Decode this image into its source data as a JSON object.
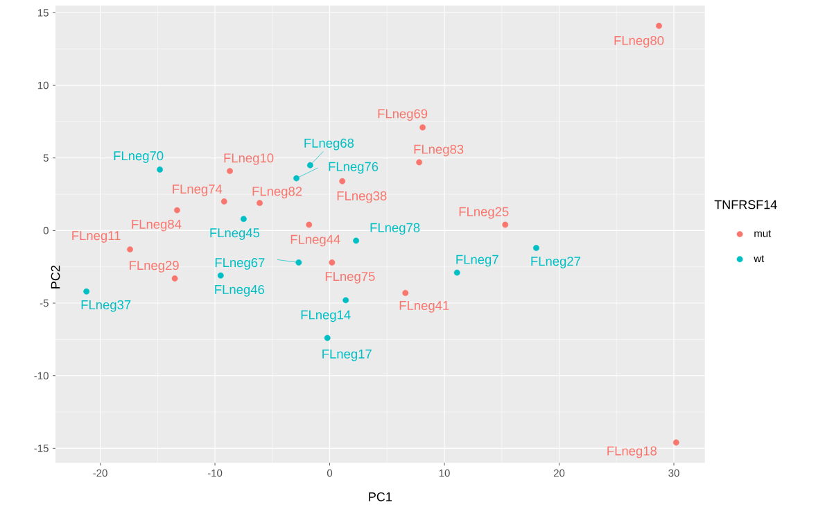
{
  "chart_data": {
    "type": "scatter",
    "xlabel": "PC1",
    "ylabel": "PC2",
    "legend_title": "TNFRSF14",
    "series": [
      {
        "name": "mut",
        "color": "#F8766D",
        "x": [
          28.7,
          30.2,
          8.1,
          7.8,
          -8.7,
          -9.2,
          -6.1,
          -13.3,
          1.1,
          -1.8,
          15.3,
          -17.4,
          -13.5,
          0.2,
          6.6
        ],
        "values": [
          14.1,
          -14.6,
          7.1,
          4.7,
          4.1,
          2.0,
          1.9,
          1.4,
          3.4,
          0.4,
          0.4,
          -1.3,
          -3.3,
          -2.2,
          -4.3
        ]
      },
      {
        "name": "wt",
        "color": "#00BFC4",
        "x": [
          -14.8,
          -1.7,
          -2.9,
          -7.5,
          2.3,
          18.0,
          11.1,
          -2.7,
          -9.5,
          -21.2,
          1.4,
          -0.2
        ],
        "values": [
          4.2,
          4.5,
          3.6,
          0.8,
          -0.7,
          -1.2,
          -2.9,
          -2.2,
          -3.1,
          -4.2,
          -4.8,
          -7.4
        ]
      }
    ],
    "annotations": [
      {
        "text": "FLneg80",
        "x": 28.7,
        "y": 14.1
      },
      {
        "text": "FLneg18",
        "x": 30.2,
        "y": -14.6
      },
      {
        "text": "FLneg69",
        "x": 8.1,
        "y": 7.1
      },
      {
        "text": "FLneg83",
        "x": 7.8,
        "y": 4.7
      },
      {
        "text": "FLneg10",
        "x": -8.7,
        "y": 4.1
      },
      {
        "text": "FLneg74",
        "x": -9.2,
        "y": 2.0
      },
      {
        "text": "FLneg82",
        "x": -6.1,
        "y": 1.9
      },
      {
        "text": "FLneg84",
        "x": -13.3,
        "y": 1.4
      },
      {
        "text": "FLneg38",
        "x": 1.1,
        "y": 3.4
      },
      {
        "text": "FLneg44",
        "x": -1.8,
        "y": 0.4
      },
      {
        "text": "FLneg25",
        "x": 15.3,
        "y": 0.4
      },
      {
        "text": "FLneg11",
        "x": -17.4,
        "y": -1.3
      },
      {
        "text": "FLneg29",
        "x": -13.5,
        "y": -3.3
      },
      {
        "text": "FLneg75",
        "x": 0.2,
        "y": -2.2
      },
      {
        "text": "FLneg41",
        "x": 6.6,
        "y": -4.3
      },
      {
        "text": "FLneg70",
        "x": -14.8,
        "y": 4.2
      },
      {
        "text": "FLneg68",
        "x": -1.7,
        "y": 4.5
      },
      {
        "text": "FLneg76",
        "x": -2.9,
        "y": 3.6
      },
      {
        "text": "FLneg45",
        "x": -7.5,
        "y": 0.8
      },
      {
        "text": "FLneg78",
        "x": 2.3,
        "y": -0.7
      },
      {
        "text": "FLneg27",
        "x": 18.0,
        "y": -1.2
      },
      {
        "text": "FLneg7",
        "x": 11.1,
        "y": -2.9
      },
      {
        "text": "FLneg67",
        "x": -2.7,
        "y": -2.2
      },
      {
        "text": "FLneg46",
        "x": -9.5,
        "y": -3.1
      },
      {
        "text": "FLneg37",
        "x": -21.2,
        "y": -4.2
      },
      {
        "text": "FLneg14",
        "x": 1.4,
        "y": -4.8
      },
      {
        "text": "FLneg17",
        "x": -0.2,
        "y": -7.4
      }
    ],
    "xlim": [
      -23.9,
      32.7
    ],
    "ylim": [
      -16,
      15.5
    ],
    "xticks": [
      -20,
      -10,
      0,
      10,
      20,
      30
    ],
    "yticks": [
      -15,
      -10,
      -5,
      0,
      5,
      10,
      15
    ],
    "grid": true,
    "legend": "right"
  }
}
